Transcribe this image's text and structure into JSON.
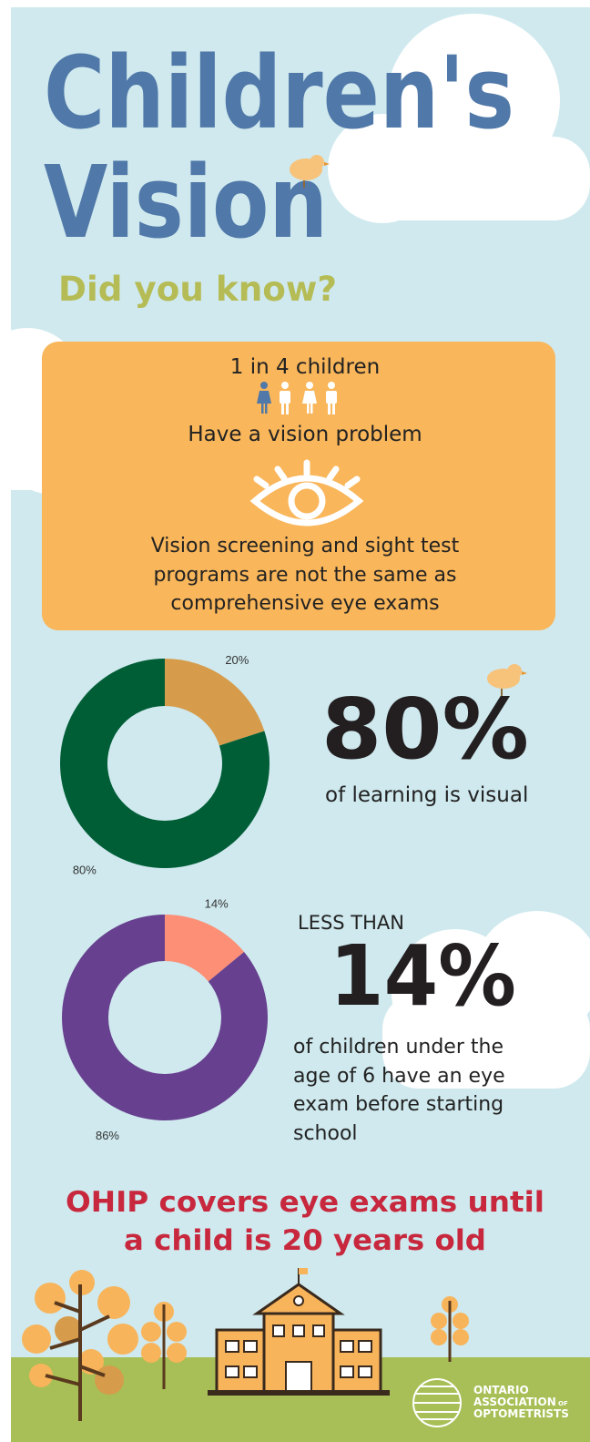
{
  "title_line1": "Children's",
  "title_line2": "Vision",
  "subtitle": "Did you know?",
  "fact_box": {
    "line1": "1 in 4 children",
    "line2": "Have a vision problem",
    "note": [
      "Vision screening and sight test",
      "programs are not the same as",
      "comprehensive eye exams"
    ]
  },
  "chart_data": [
    {
      "type": "pie",
      "donut": true,
      "values": [
        20,
        80
      ],
      "value_labels": [
        "20%",
        "80%"
      ],
      "colors": [
        "#d69c4b",
        "#005e37"
      ]
    },
    {
      "type": "pie",
      "donut": true,
      "values": [
        14,
        86
      ],
      "value_labels": [
        "14%",
        "86%"
      ],
      "colors": [
        "#fd8f76",
        "#67408f"
      ]
    }
  ],
  "stat1": {
    "big": "80%",
    "text": "of learning is visual"
  },
  "stat2": {
    "prefix": "LESS THAN",
    "big": "14%",
    "text": [
      "of children under the",
      "age of 6 have an eye",
      "exam before starting",
      "school"
    ]
  },
  "ohip": [
    "OHIP covers eye exams until",
    "a child is 20 years old"
  ],
  "logo": [
    "ONTARIO",
    "ASSOCIATION",
    "OF",
    "OPTOMETRISTS"
  ]
}
